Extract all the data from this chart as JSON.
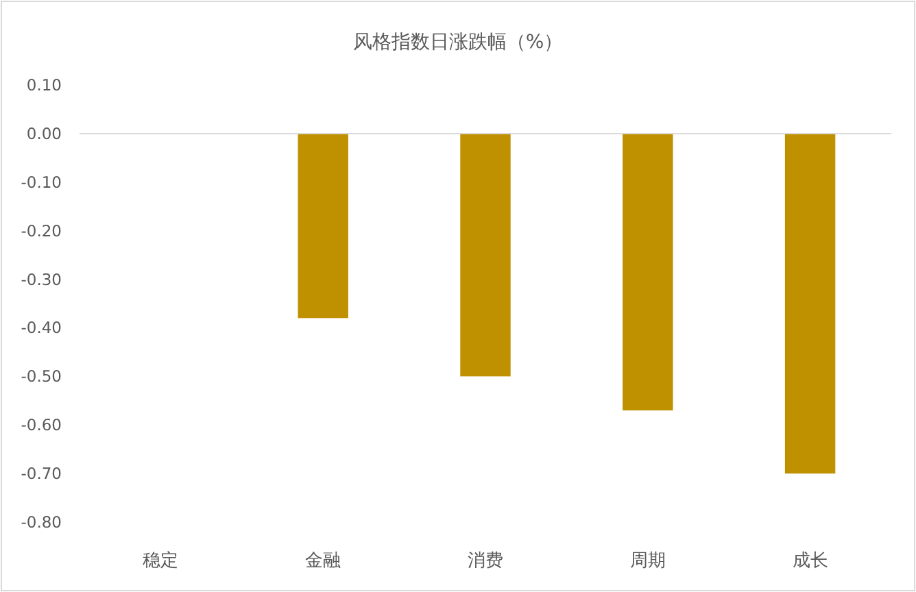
{
  "chart_data": {
    "type": "bar",
    "title": "风格指数日涨跌幅（%）",
    "categories": [
      "稳定",
      "金融",
      "消费",
      "周期",
      "成长"
    ],
    "values": [
      0,
      -0.38,
      -0.5,
      -0.57,
      -0.7
    ],
    "color": "#bf9000",
    "ylim": [
      -0.8,
      0.1
    ],
    "yticks": [
      {
        "value": 0.1,
        "label": "0.10"
      },
      {
        "value": 0,
        "label": "0.00"
      },
      {
        "value": -0.1,
        "label": "-0.10"
      },
      {
        "value": -0.2,
        "label": "-0.20"
      },
      {
        "value": -0.3,
        "label": "-0.30"
      },
      {
        "value": -0.4,
        "label": "-0.40"
      },
      {
        "value": -0.5,
        "label": "-0.50"
      },
      {
        "value": -0.6,
        "label": "-0.60"
      },
      {
        "value": -0.7,
        "label": "-0.70"
      },
      {
        "value": -0.8,
        "label": "-0.80"
      }
    ]
  }
}
